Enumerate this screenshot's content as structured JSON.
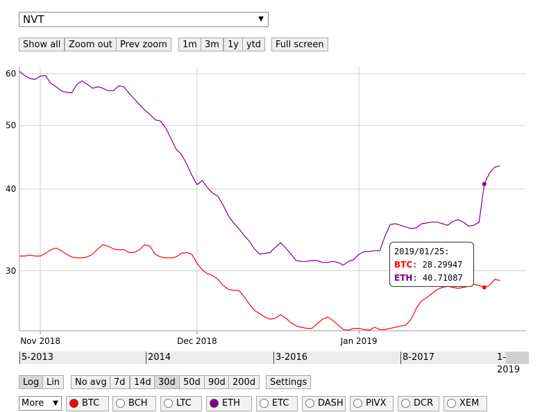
{
  "metric_select": {
    "value": "NVT"
  },
  "zoom_buttons": {
    "show_all": "Show all",
    "zoom_out": "Zoom out",
    "prev_zoom": "Prev zoom",
    "r1m": "1m",
    "r3m": "3m",
    "r1y": "1y",
    "rytd": "ytd",
    "full_screen": "Full screen"
  },
  "scale_buttons": {
    "log": "Log",
    "lin": "Lin"
  },
  "avg_buttons": {
    "no_avg": "No avg",
    "d7": "7d",
    "d14": "14d",
    "d30": "30d",
    "d50": "50d",
    "d90": "90d",
    "d200": "200d",
    "settings": "Settings"
  },
  "more_select": {
    "value": "More"
  },
  "coins": [
    {
      "label": "BTC",
      "checked": true,
      "color": "#ff0000"
    },
    {
      "label": "BCH",
      "checked": false,
      "color": "#ffffff"
    },
    {
      "label": "LTC",
      "checked": false,
      "color": "#ffffff"
    },
    {
      "label": "ETH",
      "checked": true,
      "color": "#800080"
    },
    {
      "label": "ETC",
      "checked": false,
      "color": "#ffffff"
    },
    {
      "label": "DASH",
      "checked": false,
      "color": "#ffffff"
    },
    {
      "label": "PIVX",
      "checked": false,
      "color": "#ffffff"
    },
    {
      "label": "DCR",
      "checked": false,
      "color": "#ffffff"
    },
    {
      "label": "XEM",
      "checked": false,
      "color": "#ffffff"
    }
  ],
  "navigator": {
    "labels": [
      "5-2013",
      "2014",
      "3-2016",
      "8-2017",
      "1-2019"
    ]
  },
  "tooltip": {
    "date": "2019/01/25:",
    "rows": [
      {
        "name": "BTC",
        "value": "28.29947",
        "color": "#ff0000"
      },
      {
        "name": "ETH",
        "value": "40.71087",
        "color": "#800080"
      }
    ]
  },
  "chart_data": {
    "type": "line",
    "y_scale": "log",
    "ylim": [
      24.3,
      61.5
    ],
    "xlim": [
      "2018-10-28",
      "2019-02-02"
    ],
    "ytick_labels": [
      "30",
      "40",
      "50",
      "60"
    ],
    "ytick_values": [
      30,
      40,
      50,
      60
    ],
    "xtick_labels": [
      "Nov 2018",
      "Dec 2018",
      "Jan 2019"
    ],
    "xtick_values": [
      "2018-11-01",
      "2018-12-01",
      "2019-01-01"
    ],
    "grid": true,
    "series": [
      {
        "name": "BTC",
        "color": "#ff0000",
        "points": [
          [
            "2018-10-28",
            31.6
          ],
          [
            "2018-10-29",
            31.6
          ],
          [
            "2018-10-30",
            31.7
          ],
          [
            "2018-10-31",
            31.6
          ],
          [
            "2018-11-01",
            31.6
          ],
          [
            "2018-11-02",
            31.9
          ],
          [
            "2018-11-03",
            32.3
          ],
          [
            "2018-11-04",
            32.5
          ],
          [
            "2018-11-05",
            32.2
          ],
          [
            "2018-11-06",
            31.8
          ],
          [
            "2018-11-07",
            31.5
          ],
          [
            "2018-11-08",
            31.4
          ],
          [
            "2018-11-09",
            31.4
          ],
          [
            "2018-11-10",
            31.5
          ],
          [
            "2018-11-11",
            31.8
          ],
          [
            "2018-11-12",
            32.4
          ],
          [
            "2018-11-13",
            32.9
          ],
          [
            "2018-11-14",
            32.7
          ],
          [
            "2018-11-15",
            32.4
          ],
          [
            "2018-11-16",
            32.3
          ],
          [
            "2018-11-17",
            32.3
          ],
          [
            "2018-11-18",
            32.0
          ],
          [
            "2018-11-19",
            32.0
          ],
          [
            "2018-11-20",
            32.3
          ],
          [
            "2018-11-21",
            32.9
          ],
          [
            "2018-11-22",
            32.7
          ],
          [
            "2018-11-23",
            31.8
          ],
          [
            "2018-11-24",
            31.5
          ],
          [
            "2018-11-25",
            31.4
          ],
          [
            "2018-11-26",
            31.4
          ],
          [
            "2018-11-27",
            31.5
          ],
          [
            "2018-11-28",
            31.9
          ],
          [
            "2018-11-29",
            32.0
          ],
          [
            "2018-11-30",
            31.8
          ],
          [
            "2018-12-01",
            30.8
          ],
          [
            "2018-12-02",
            30.1
          ],
          [
            "2018-12-03",
            29.7
          ],
          [
            "2018-12-04",
            29.5
          ],
          [
            "2018-12-05",
            29.1
          ],
          [
            "2018-12-06",
            28.5
          ],
          [
            "2018-12-07",
            28.1
          ],
          [
            "2018-12-08",
            28.0
          ],
          [
            "2018-12-09",
            28.0
          ],
          [
            "2018-12-10",
            27.4
          ],
          [
            "2018-12-11",
            26.7
          ],
          [
            "2018-12-12",
            26.1
          ],
          [
            "2018-12-13",
            25.8
          ],
          [
            "2018-12-14",
            25.5
          ],
          [
            "2018-12-15",
            25.3
          ],
          [
            "2018-12-16",
            25.4
          ],
          [
            "2018-12-17",
            25.7
          ],
          [
            "2018-12-18",
            25.4
          ],
          [
            "2018-12-19",
            25.0
          ],
          [
            "2018-12-20",
            24.7
          ],
          [
            "2018-12-21",
            24.6
          ],
          [
            "2018-12-22",
            24.5
          ],
          [
            "2018-12-23",
            24.5
          ],
          [
            "2018-12-24",
            24.9
          ],
          [
            "2018-12-25",
            25.3
          ],
          [
            "2018-12-26",
            25.5
          ],
          [
            "2018-12-27",
            25.2
          ],
          [
            "2018-12-28",
            24.8
          ],
          [
            "2018-12-29",
            24.4
          ],
          [
            "2018-12-30",
            24.35
          ],
          [
            "2018-12-31",
            24.5
          ],
          [
            "2019-01-01",
            24.5
          ],
          [
            "2019-01-02",
            24.4
          ],
          [
            "2019-01-03",
            24.35
          ],
          [
            "2019-01-04",
            24.6
          ],
          [
            "2019-01-05",
            24.4
          ],
          [
            "2019-01-06",
            24.4
          ],
          [
            "2019-01-07",
            24.5
          ],
          [
            "2019-01-08",
            24.6
          ],
          [
            "2019-01-09",
            24.7
          ],
          [
            "2019-01-10",
            24.8
          ],
          [
            "2019-01-11",
            25.3
          ],
          [
            "2019-01-12",
            26.3
          ],
          [
            "2019-01-13",
            27.0
          ],
          [
            "2019-01-14",
            27.3
          ],
          [
            "2019-01-15",
            27.7
          ],
          [
            "2019-01-16",
            28.1
          ],
          [
            "2019-01-17",
            28.3
          ],
          [
            "2019-01-18",
            28.4
          ],
          [
            "2019-01-19",
            28.3
          ],
          [
            "2019-01-20",
            28.2
          ],
          [
            "2019-01-21",
            28.3
          ],
          [
            "2019-01-22",
            28.4
          ],
          [
            "2019-01-23",
            28.6
          ],
          [
            "2019-01-24",
            28.5
          ],
          [
            "2019-01-25",
            28.29947
          ],
          [
            "2019-01-26",
            28.5
          ],
          [
            "2019-01-27",
            29.1
          ],
          [
            "2019-01-28",
            29.0
          ]
        ]
      },
      {
        "name": "ETH",
        "color": "#800080",
        "points": [
          [
            "2018-10-28",
            60.5
          ],
          [
            "2018-10-29",
            59.6
          ],
          [
            "2018-10-30",
            59.0
          ],
          [
            "2018-10-31",
            58.8
          ],
          [
            "2018-11-01",
            59.5
          ],
          [
            "2018-11-02",
            59.6
          ],
          [
            "2018-11-03",
            58.0
          ],
          [
            "2018-11-04",
            57.3
          ],
          [
            "2018-11-05",
            56.5
          ],
          [
            "2018-11-06",
            56.2
          ],
          [
            "2018-11-07",
            56.1
          ],
          [
            "2018-11-08",
            57.8
          ],
          [
            "2018-11-09",
            58.5
          ],
          [
            "2018-11-10",
            57.8
          ],
          [
            "2018-11-11",
            57.0
          ],
          [
            "2018-11-12",
            57.3
          ],
          [
            "2018-11-13",
            57.0
          ],
          [
            "2018-11-14",
            56.5
          ],
          [
            "2018-11-15",
            56.5
          ],
          [
            "2018-11-16",
            57.5
          ],
          [
            "2018-11-17",
            57.3
          ],
          [
            "2018-11-18",
            56.0
          ],
          [
            "2018-11-19",
            54.9
          ],
          [
            "2018-11-20",
            53.8
          ],
          [
            "2018-11-21",
            52.8
          ],
          [
            "2018-11-22",
            52.0
          ],
          [
            "2018-11-23",
            51.0
          ],
          [
            "2018-11-24",
            50.8
          ],
          [
            "2018-11-25",
            49.6
          ],
          [
            "2018-11-26",
            47.8
          ],
          [
            "2018-11-27",
            46.0
          ],
          [
            "2018-11-28",
            45.2
          ],
          [
            "2018-11-29",
            43.7
          ],
          [
            "2018-11-30",
            42.0
          ],
          [
            "2018-12-01",
            40.6
          ],
          [
            "2018-12-02",
            41.2
          ],
          [
            "2018-12-03",
            40.2
          ],
          [
            "2018-12-04",
            39.4
          ],
          [
            "2018-12-05",
            39.0
          ],
          [
            "2018-12-06",
            37.8
          ],
          [
            "2018-12-07",
            36.4
          ],
          [
            "2018-12-08",
            35.5
          ],
          [
            "2018-12-09",
            34.8
          ],
          [
            "2018-12-10",
            34.0
          ],
          [
            "2018-12-11",
            33.3
          ],
          [
            "2018-12-12",
            32.4
          ],
          [
            "2018-12-13",
            31.8
          ],
          [
            "2018-12-14",
            31.9
          ],
          [
            "2018-12-15",
            32.0
          ],
          [
            "2018-12-16",
            32.6
          ],
          [
            "2018-12-17",
            33.1
          ],
          [
            "2018-12-18",
            32.5
          ],
          [
            "2018-12-19",
            31.8
          ],
          [
            "2018-12-20",
            31.1
          ],
          [
            "2018-12-21",
            31.0
          ],
          [
            "2018-12-22",
            31.0
          ],
          [
            "2018-12-23",
            31.1
          ],
          [
            "2018-12-24",
            31.1
          ],
          [
            "2018-12-25",
            30.9
          ],
          [
            "2018-12-26",
            30.9
          ],
          [
            "2018-12-27",
            31.0
          ],
          [
            "2018-12-28",
            30.9
          ],
          [
            "2018-12-29",
            30.6
          ],
          [
            "2018-12-30",
            31.0
          ],
          [
            "2018-12-31",
            31.2
          ],
          [
            "2019-01-01",
            31.8
          ],
          [
            "2019-01-02",
            32.1
          ],
          [
            "2019-01-03",
            32.1
          ],
          [
            "2019-01-04",
            32.2
          ],
          [
            "2019-01-05",
            32.2
          ],
          [
            "2019-01-06",
            33.9
          ],
          [
            "2019-01-07",
            35.3
          ],
          [
            "2019-01-08",
            35.4
          ],
          [
            "2019-01-09",
            35.2
          ],
          [
            "2019-01-10",
            35.0
          ],
          [
            "2019-01-11",
            34.8
          ],
          [
            "2019-01-12",
            34.9
          ],
          [
            "2019-01-13",
            35.4
          ],
          [
            "2019-01-14",
            35.5
          ],
          [
            "2019-01-15",
            35.6
          ],
          [
            "2019-01-16",
            35.6
          ],
          [
            "2019-01-17",
            35.4
          ],
          [
            "2019-01-18",
            35.2
          ],
          [
            "2019-01-19",
            35.7
          ],
          [
            "2019-01-20",
            35.9
          ],
          [
            "2019-01-21",
            35.6
          ],
          [
            "2019-01-22",
            35.1
          ],
          [
            "2019-01-23",
            35.2
          ],
          [
            "2019-01-24",
            35.6
          ],
          [
            "2019-01-25",
            40.71087
          ],
          [
            "2019-01-26",
            42.3
          ],
          [
            "2019-01-27",
            43.2
          ],
          [
            "2019-01-28",
            43.4
          ]
        ]
      }
    ],
    "highlight_date": "2019-01-25"
  }
}
